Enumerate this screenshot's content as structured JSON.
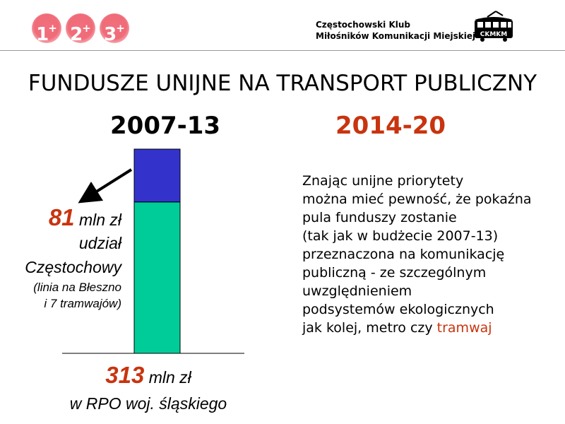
{
  "header": {
    "badges": [
      {
        "digit": "1",
        "sup": "+"
      },
      {
        "digit": "2",
        "sup": "+"
      },
      {
        "digit": "3",
        "sup": "+"
      }
    ],
    "club_line1": "Częstochowski Klub",
    "club_line2": "Miłośników Komunikacji Miejskiej",
    "logo_text": "CKMKM",
    "logo_icon": "tram-icon"
  },
  "title": "FUNDUSZE UNIJNE NA TRANSPORT PUBLICZNY",
  "periods": {
    "left": "2007-13",
    "right": "2014-20"
  },
  "colors": {
    "accent": "#c8340f",
    "bar_lower": "#00cc99",
    "bar_upper": "#3333cc",
    "badge": "#ef6b78"
  },
  "chart_data": {
    "type": "bar",
    "stacked": true,
    "categories": [
      "2007-13"
    ],
    "unit": "mln zł",
    "total": 313,
    "ylim": [
      0,
      313
    ],
    "series": [
      {
        "values": [
          81
        ],
        "color": "#3333cc"
      },
      {
        "values": [
          232
        ],
        "color": "#00cc99"
      }
    ]
  },
  "annotation": {
    "amount": "81",
    "unit": "mln zł",
    "line2": "udział",
    "line3": "Częstochowy",
    "line4": "(linia na Błeszno",
    "line5": "i 7 tramwajów)"
  },
  "bottom": {
    "amount": "313",
    "unit": "mln zł",
    "line2": "w RPO woj. śląskiego"
  },
  "right_text": {
    "lines": [
      "Znając unijne priorytety",
      "można mieć pewność, że pokaźna",
      "pula funduszy zostanie",
      "(tak jak w budżecie 2007-13)",
      "przeznaczona na komunikację",
      "publiczną - ze szczególnym",
      "uwzględnieniem",
      "podsystemów ekologicznych"
    ],
    "last_prefix": "jak kolej, metro czy ",
    "last_highlight": "tramwaj"
  }
}
